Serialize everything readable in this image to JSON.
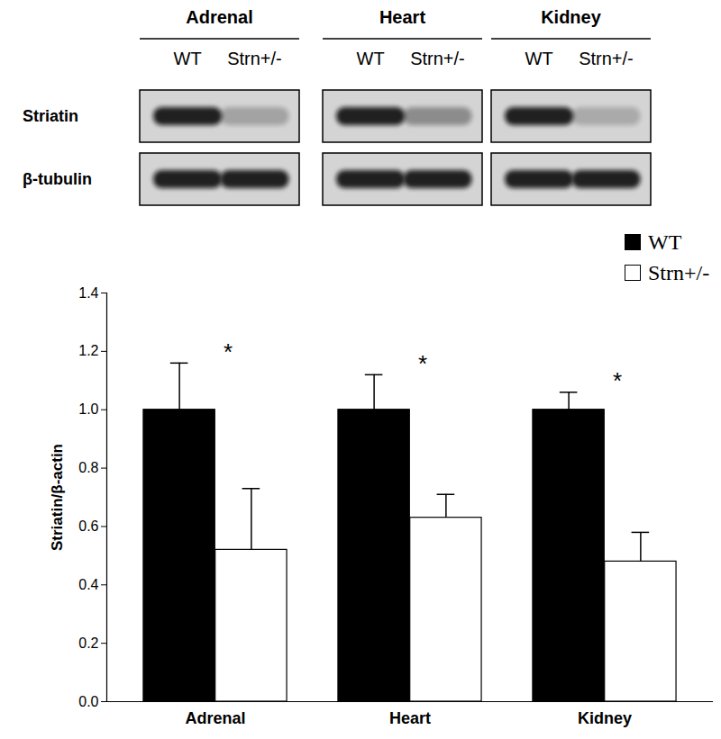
{
  "chart_data": {
    "type": "bar",
    "categories": [
      "Adrenal",
      "Heart",
      "Kidney"
    ],
    "series": [
      {
        "name": "WT",
        "color": "#000000",
        "values": [
          1.0,
          1.0,
          1.0
        ],
        "errors": [
          0.16,
          0.12,
          0.06
        ]
      },
      {
        "name": "Strn+/-",
        "color": "#ffffff",
        "values": [
          0.52,
          0.63,
          0.48
        ],
        "errors": [
          0.21,
          0.08,
          0.1
        ]
      }
    ],
    "y_label": "Striatin/β-actin",
    "ylim": [
      0,
      1.4
    ],
    "yticks": [
      {
        "value": 0,
        "label": "0.0"
      },
      0.2,
      0.4,
      0.6,
      0.8,
      {
        "value": 1,
        "label": "1.0"
      },
      1.2,
      1.4
    ],
    "annotations": [
      {
        "category": "Adrenal",
        "text": "*"
      },
      {
        "category": "Heart",
        "text": "*"
      },
      {
        "category": "Kidney",
        "text": "*"
      }
    ],
    "legend": "top-right"
  },
  "blot": {
    "tissues": [
      "Adrenal",
      "Heart",
      "Kidney"
    ],
    "lanes": [
      "WT",
      "Strn+/-"
    ],
    "rows": [
      "Striatin",
      "β-tubulin"
    ]
  }
}
